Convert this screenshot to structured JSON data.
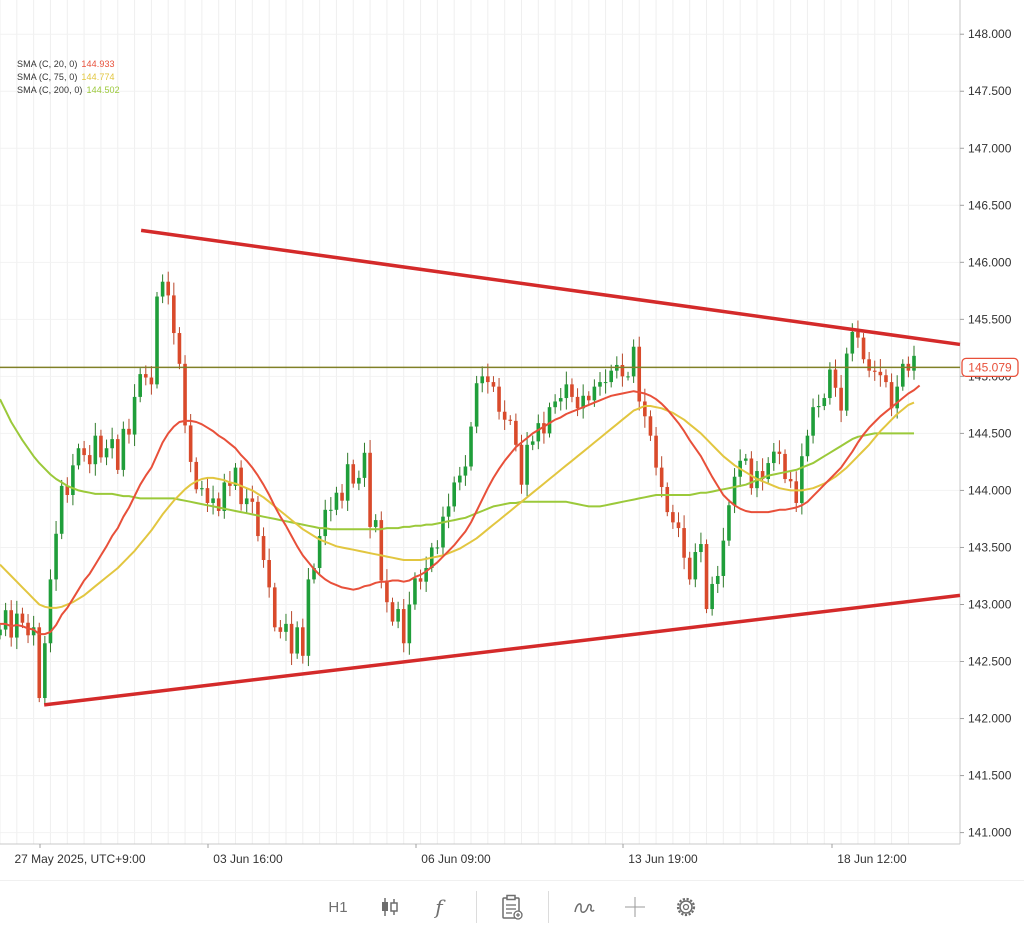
{
  "chart_data": {
    "type": "candlestick",
    "title": "",
    "xlabel": "",
    "ylabel": "",
    "ylim": [
      140.9,
      148.3
    ],
    "y_ticks": [
      "141.000",
      "141.500",
      "142.000",
      "142.500",
      "143.000",
      "143.500",
      "144.000",
      "144.500",
      "145.000",
      "145.500",
      "146.000",
      "146.500",
      "147.000",
      "147.500",
      "148.000"
    ],
    "x_ticks": [
      "27 May 2025, UTC+9:00",
      "03 Jun 16:00",
      "06 Jun 09:00",
      "13 Jun 19:00",
      "18 Jun 12:00"
    ],
    "grid": true,
    "current_price": "145.079",
    "current_price_value": 145.079,
    "indicators": [
      {
        "name": "SMA (C, 20, 0)",
        "value": "144.933",
        "color": "#e8503a"
      },
      {
        "name": "SMA (C, 75, 0)",
        "value": "144.774",
        "color": "#e2c640"
      },
      {
        "name": "SMA (C, 200, 0)",
        "value": "144.502",
        "color": "#9bc93a"
      }
    ],
    "trendlines": [
      {
        "name": "upper-resistance",
        "from": [
          0.147,
          146.28
        ],
        "to": [
          1.0,
          145.28
        ],
        "color": "#d42a2a"
      },
      {
        "name": "lower-support",
        "from": [
          0.046,
          142.12
        ],
        "to": [
          1.0,
          143.08
        ],
        "color": "#d42a2a"
      }
    ],
    "horizontal_line": {
      "value": 145.079,
      "color": "#808027"
    },
    "closes": [
      142.78,
      142.95,
      142.71,
      142.92,
      142.84,
      142.73,
      142.8,
      142.18,
      142.66,
      143.22,
      143.62,
      144.04,
      143.96,
      144.22,
      144.37,
      144.31,
      144.23,
      144.48,
      144.29,
      144.37,
      144.45,
      144.18,
      144.54,
      144.49,
      144.82,
      145.02,
      144.99,
      144.93,
      145.7,
      145.83,
      145.71,
      145.38,
      145.11,
      144.57,
      144.25,
      144.01,
      144.02,
      143.89,
      143.93,
      143.82,
      144.07,
      144.04,
      144.2,
      143.88,
      143.93,
      143.9,
      143.6,
      143.39,
      143.15,
      142.8,
      142.76,
      142.83,
      142.57,
      142.8,
      142.55,
      143.22,
      143.32,
      143.6,
      143.83,
      143.83,
      143.98,
      143.91,
      144.23,
      144.06,
      144.11,
      144.33,
      143.68,
      143.74,
      143.21,
      143.02,
      142.85,
      142.96,
      142.66,
      143.0,
      143.23,
      143.2,
      143.32,
      143.5,
      143.5,
      143.77,
      143.86,
      144.07,
      144.13,
      144.21,
      144.56,
      144.94,
      145.0,
      144.95,
      144.91,
      144.69,
      144.62,
      144.61,
      144.4,
      144.05,
      144.4,
      144.43,
      144.59,
      144.5,
      144.73,
      144.78,
      144.81,
      144.93,
      144.82,
      144.72,
      144.83,
      144.79,
      144.91,
      144.95,
      144.95,
      145.05,
      145.1,
      145.0,
      145.0,
      145.26,
      144.78,
      144.65,
      144.48,
      144.2,
      144.03,
      143.81,
      143.72,
      143.67,
      143.41,
      143.22,
      143.46,
      143.53,
      142.96,
      143.18,
      143.25,
      143.56,
      143.87,
      144.12,
      144.26,
      144.28,
      144.02,
      144.17,
      144.1,
      144.24,
      144.34,
      144.32,
      144.1,
      144.08,
      143.89,
      144.3,
      144.48,
      144.73,
      144.74,
      144.81,
      145.06,
      144.9,
      144.7,
      145.2,
      145.39,
      145.34,
      145.15,
      145.05,
      145.04,
      145.01,
      144.95,
      144.72,
      144.91,
      145.11,
      145.05,
      145.18
    ],
    "sma20": [
      142.83,
      142.83,
      142.81,
      142.82,
      142.81,
      142.79,
      142.78,
      142.74,
      142.74,
      142.76,
      142.82,
      142.91,
      142.97,
      143.05,
      143.13,
      143.21,
      143.27,
      143.35,
      143.43,
      143.51,
      143.6,
      143.67,
      143.77,
      143.85,
      143.95,
      144.05,
      144.13,
      144.2,
      144.31,
      144.42,
      144.5,
      144.56,
      144.6,
      144.61,
      144.61,
      144.6,
      144.58,
      144.55,
      144.52,
      144.48,
      144.45,
      144.41,
      144.37,
      144.31,
      144.26,
      144.2,
      144.13,
      144.05,
      143.96,
      143.86,
      143.77,
      143.69,
      143.6,
      143.51,
      143.43,
      143.37,
      143.31,
      143.26,
      143.22,
      143.19,
      143.17,
      143.15,
      143.14,
      143.13,
      143.14,
      143.16,
      143.17,
      143.19,
      143.2,
      143.2,
      143.21,
      143.21,
      143.2,
      143.21,
      143.24,
      143.26,
      143.29,
      143.33,
      143.37,
      143.42,
      143.47,
      143.52,
      143.58,
      143.64,
      143.72,
      143.82,
      143.92,
      144.02,
      144.11,
      144.19,
      144.26,
      144.32,
      144.38,
      144.42,
      144.46,
      144.5,
      144.53,
      144.56,
      144.59,
      144.62,
      144.64,
      144.67,
      144.69,
      144.71,
      144.73,
      144.75,
      144.77,
      144.79,
      144.81,
      144.83,
      144.84,
      144.85,
      144.86,
      144.87,
      144.86,
      144.85,
      144.83,
      144.8,
      144.76,
      144.71,
      144.65,
      144.59,
      144.52,
      144.44,
      144.37,
      144.3,
      144.21,
      144.12,
      144.04,
      143.96,
      143.91,
      143.87,
      143.84,
      143.82,
      143.81,
      143.81,
      143.81,
      143.81,
      143.82,
      143.83,
      143.83,
      143.84,
      143.85,
      143.87,
      143.9,
      143.95,
      144.0,
      144.05,
      144.1,
      144.15,
      144.2,
      144.27,
      144.34,
      144.42,
      144.49,
      144.55,
      144.6,
      144.65,
      144.69,
      144.73,
      144.77,
      144.81,
      144.85,
      144.88,
      144.92
    ],
    "sma75": [
      143.35,
      143.3,
      143.25,
      143.2,
      143.15,
      143.1,
      143.05,
      143.0,
      142.98,
      142.97,
      142.97,
      142.98,
      143.0,
      143.02,
      143.05,
      143.08,
      143.12,
      143.16,
      143.2,
      143.24,
      143.28,
      143.32,
      143.37,
      143.42,
      143.47,
      143.53,
      143.59,
      143.65,
      143.72,
      143.79,
      143.85,
      143.91,
      143.96,
      144.01,
      144.05,
      144.08,
      144.1,
      144.11,
      144.11,
      144.1,
      144.09,
      144.07,
      144.06,
      144.04,
      144.02,
      144.0,
      143.97,
      143.94,
      143.9,
      143.86,
      143.82,
      143.78,
      143.74,
      143.7,
      143.66,
      143.63,
      143.6,
      143.57,
      143.55,
      143.53,
      143.51,
      143.5,
      143.49,
      143.48,
      143.47,
      143.46,
      143.45,
      143.44,
      143.43,
      143.42,
      143.41,
      143.4,
      143.39,
      143.39,
      143.39,
      143.39,
      143.4,
      143.41,
      143.42,
      143.43,
      143.45,
      143.47,
      143.49,
      143.52,
      143.55,
      143.58,
      143.62,
      143.66,
      143.7,
      143.74,
      143.78,
      143.82,
      143.86,
      143.9,
      143.94,
      143.98,
      144.02,
      144.06,
      144.1,
      144.14,
      144.18,
      144.22,
      144.26,
      144.3,
      144.34,
      144.38,
      144.42,
      144.46,
      144.5,
      144.54,
      144.58,
      144.62,
      144.66,
      144.7,
      144.72,
      144.74,
      144.74,
      144.73,
      144.72,
      144.7,
      144.68,
      144.65,
      144.62,
      144.58,
      144.54,
      144.5,
      144.45,
      144.4,
      144.35,
      144.3,
      144.26,
      144.22,
      144.19,
      144.16,
      144.13,
      144.1,
      144.08,
      144.06,
      144.04,
      144.02,
      144.01,
      144.0,
      144.0,
      144.0,
      144.01,
      144.02,
      144.04,
      144.06,
      144.09,
      144.12,
      144.16,
      144.2,
      144.25,
      144.3,
      144.35,
      144.4,
      144.46,
      144.52,
      144.57,
      144.62,
      144.67,
      144.71,
      144.75,
      144.77
    ],
    "sma200": [
      144.8,
      144.7,
      144.6,
      144.52,
      144.44,
      144.37,
      144.3,
      144.24,
      144.19,
      144.14,
      144.1,
      144.07,
      144.04,
      144.02,
      144.0,
      143.99,
      143.98,
      143.97,
      143.97,
      143.97,
      143.97,
      143.96,
      143.95,
      143.95,
      143.94,
      143.93,
      143.93,
      143.93,
      143.93,
      143.93,
      143.93,
      143.93,
      143.92,
      143.91,
      143.9,
      143.89,
      143.88,
      143.87,
      143.86,
      143.85,
      143.84,
      143.83,
      143.82,
      143.81,
      143.8,
      143.79,
      143.78,
      143.77,
      143.76,
      143.75,
      143.74,
      143.73,
      143.72,
      143.71,
      143.7,
      143.69,
      143.68,
      143.67,
      143.67,
      143.66,
      143.66,
      143.66,
      143.66,
      143.66,
      143.66,
      143.66,
      143.66,
      143.66,
      143.66,
      143.67,
      143.67,
      143.67,
      143.68,
      143.68,
      143.69,
      143.69,
      143.7,
      143.7,
      143.71,
      143.72,
      143.73,
      143.74,
      143.75,
      143.76,
      143.78,
      143.8,
      143.82,
      143.84,
      143.86,
      143.87,
      143.88,
      143.89,
      143.89,
      143.9,
      143.9,
      143.9,
      143.9,
      143.9,
      143.9,
      143.9,
      143.9,
      143.9,
      143.89,
      143.88,
      143.87,
      143.86,
      143.86,
      143.86,
      143.87,
      143.88,
      143.89,
      143.9,
      143.91,
      143.92,
      143.93,
      143.94,
      143.95,
      143.96,
      143.96,
      143.96,
      143.96,
      143.96,
      143.96,
      143.96,
      143.97,
      143.98,
      143.98,
      143.99,
      144.0,
      144.01,
      144.02,
      144.03,
      144.04,
      144.05,
      144.07,
      144.09,
      144.11,
      144.13,
      144.14,
      144.15,
      144.16,
      144.17,
      144.18,
      144.2,
      144.22,
      144.24,
      144.27,
      144.3,
      144.33,
      144.36,
      144.39,
      144.42,
      144.45,
      144.47,
      144.48,
      144.49,
      144.5,
      144.5,
      144.5,
      144.5,
      144.5,
      144.5,
      144.5,
      144.5
    ]
  },
  "toolbar": {
    "timeframe_label": "H1",
    "candle_icon": "candlestick-icon",
    "function_label": "f",
    "template_icon": "clipboard-add-icon",
    "draw_icon": "pen-curve-icon",
    "crosshair_icon": "crosshair-icon",
    "settings_icon": "gear-icon"
  }
}
